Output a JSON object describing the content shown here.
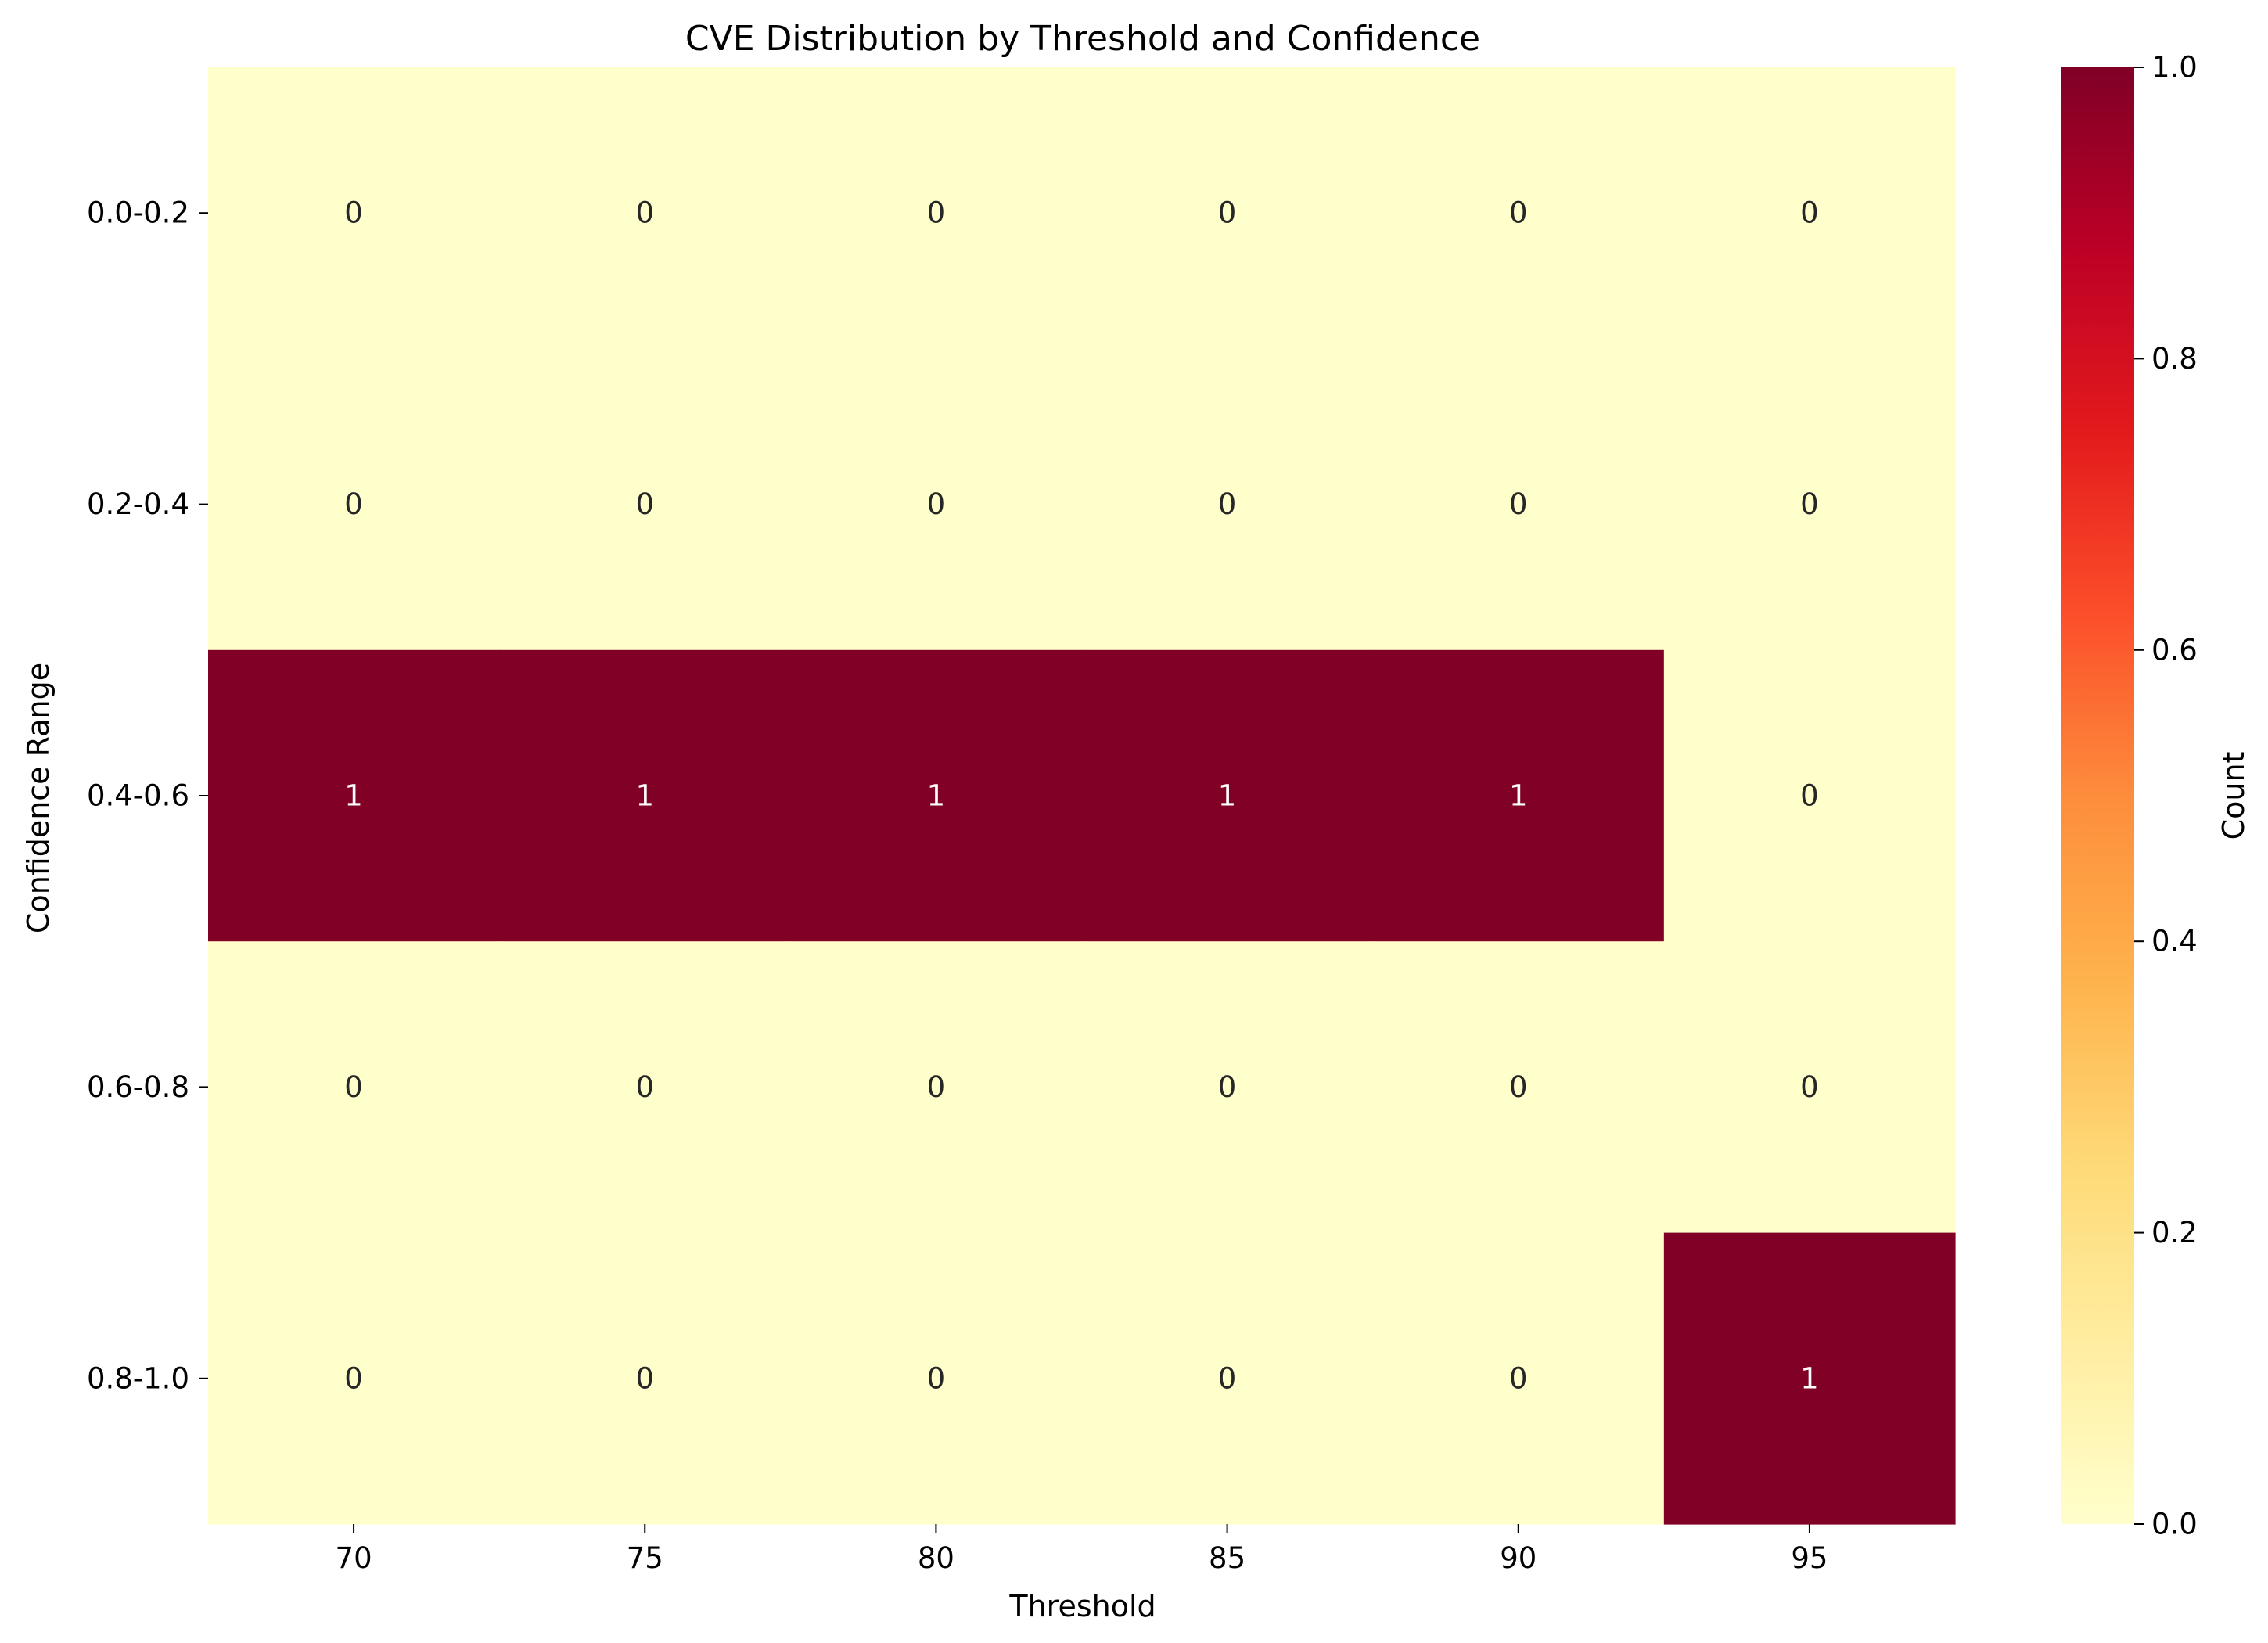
{
  "chart_data": {
    "type": "heatmap",
    "title": "CVE Distribution by Threshold and Confidence",
    "xlabel": "Threshold",
    "ylabel": "Confidence Range",
    "x_categories": [
      "70",
      "75",
      "80",
      "85",
      "90",
      "95"
    ],
    "y_categories": [
      "0.0-0.2",
      "0.2-0.4",
      "0.4-0.6",
      "0.6-0.8",
      "0.8-1.0"
    ],
    "values": [
      [
        0,
        0,
        0,
        0,
        0,
        0
      ],
      [
        0,
        0,
        0,
        0,
        0,
        0
      ],
      [
        1,
        1,
        1,
        1,
        1,
        0
      ],
      [
        0,
        0,
        0,
        0,
        0,
        0
      ],
      [
        0,
        0,
        0,
        0,
        0,
        1
      ]
    ],
    "colormap": "YlOrRd",
    "colormap_stops": [
      "#ffffcc",
      "#ffeda0",
      "#fed976",
      "#feb24c",
      "#fd8d3c",
      "#fc4e2a",
      "#e31a1c",
      "#bd0026",
      "#800026"
    ],
    "value_range": [
      0,
      1
    ],
    "colorbar": {
      "label": "Count",
      "ticks": [
        "0.0",
        "0.2",
        "0.4",
        "0.6",
        "0.8",
        "1.0"
      ],
      "tick_values": [
        0,
        0.2,
        0.4,
        0.6,
        0.8,
        1.0
      ]
    },
    "annotation_colors": {
      "light_cell": "#262626",
      "dark_cell": "#ffffff"
    }
  }
}
